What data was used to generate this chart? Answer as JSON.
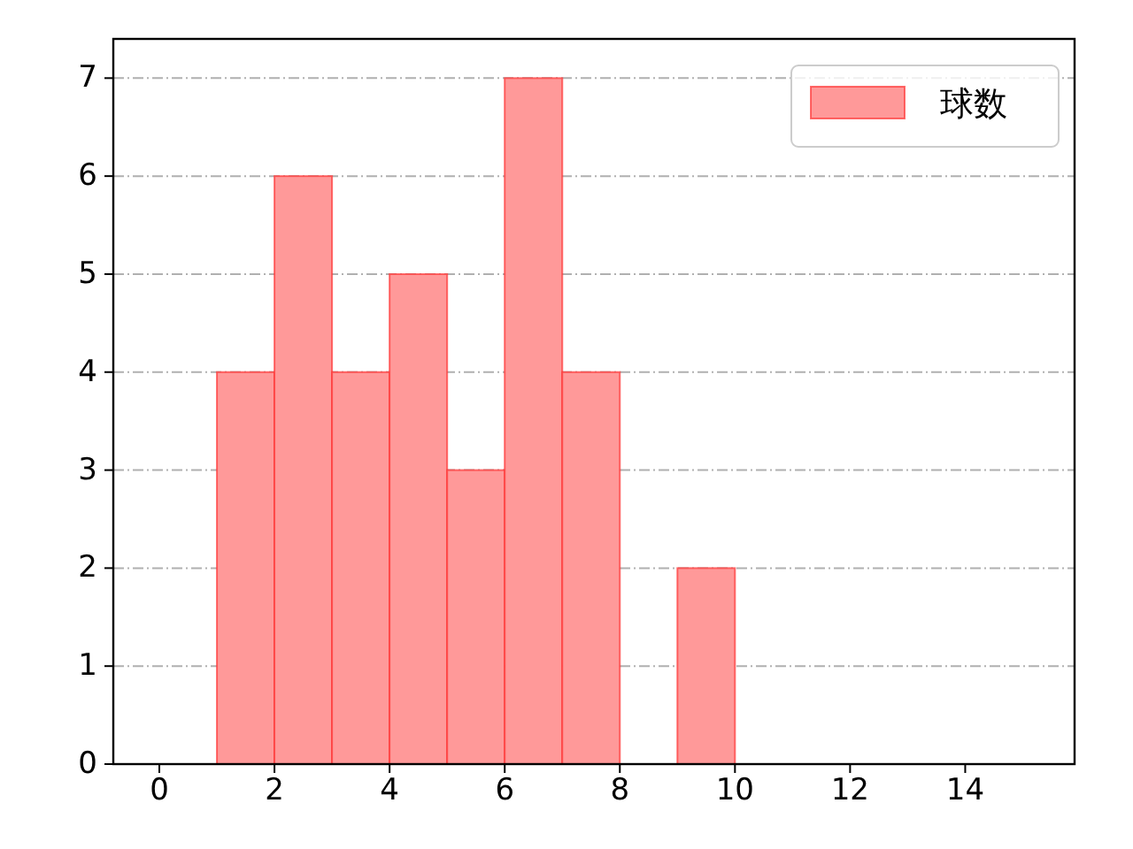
{
  "chart_data": {
    "type": "histogram",
    "bins": [
      1,
      2,
      3,
      4,
      5,
      6,
      7,
      8,
      9,
      10
    ],
    "series": [
      {
        "name": "球数",
        "color": "#ff9999",
        "values": [
          4,
          6,
          4,
          5,
          3,
          7,
          4,
          0,
          2
        ]
      }
    ],
    "xlim": [
      -0.8,
      15.9
    ],
    "xticks": [
      0,
      2,
      4,
      6,
      8,
      10,
      12,
      14
    ],
    "ylim": [
      0,
      7.4
    ],
    "yticks": [
      0,
      1,
      2,
      3,
      4,
      5,
      6,
      7
    ],
    "grid": "y",
    "legend": "top right"
  }
}
